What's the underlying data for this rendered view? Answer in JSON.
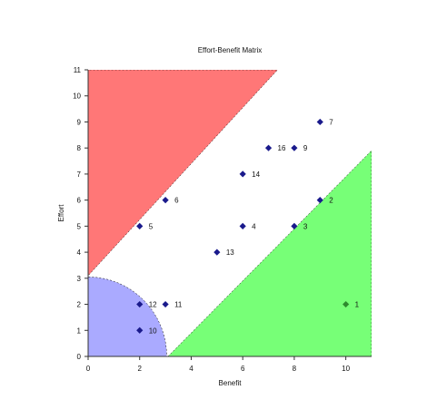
{
  "chart_data": {
    "type": "scatter",
    "title": "Effort-Benefit Matrix",
    "xlabel": "Benefit",
    "ylabel": "Effort",
    "xlim": [
      0,
      11
    ],
    "ylim": [
      0,
      11
    ],
    "x_ticks": [
      "0",
      "2",
      "4",
      "6",
      "8",
      "10"
    ],
    "x_tick_values": [
      0,
      2,
      4,
      6,
      8,
      10
    ],
    "y_ticks": [
      "0",
      "1",
      "2",
      "3",
      "4",
      "5",
      "6",
      "7",
      "8",
      "9",
      "10",
      "11"
    ],
    "y_tick_values": [
      0,
      1,
      2,
      3,
      4,
      5,
      6,
      7,
      8,
      9,
      10,
      11
    ],
    "grid": false,
    "legend": "none",
    "colors": {
      "high_effort_zone": "#ff7777",
      "low_effort_zone": "#aaaaff",
      "high_benefit_zone": "#77ff77",
      "point": "#1a1a8c",
      "highlight_point": "#2e8b2e",
      "axis": "#333333"
    },
    "zones": {
      "high_effort_boundary": [
        [
          0,
          3.1
        ],
        [
          7.35,
          11
        ]
      ],
      "high_benefit_boundary": [
        [
          3.1,
          0
        ],
        [
          11,
          7.9
        ]
      ],
      "low_effort_radius": 3.05
    },
    "points": [
      {
        "label": "7",
        "x": 9,
        "y": 9
      },
      {
        "label": "16",
        "x": 7,
        "y": 8
      },
      {
        "label": "9",
        "x": 8,
        "y": 8
      },
      {
        "label": "14",
        "x": 6,
        "y": 7
      },
      {
        "label": "6",
        "x": 3,
        "y": 6
      },
      {
        "label": "2",
        "x": 9,
        "y": 6
      },
      {
        "label": "5",
        "x": 2,
        "y": 5
      },
      {
        "label": "4",
        "x": 6,
        "y": 5
      },
      {
        "label": "3",
        "x": 8,
        "y": 5
      },
      {
        "label": "13",
        "x": 5,
        "y": 4
      },
      {
        "label": "12",
        "x": 2,
        "y": 2
      },
      {
        "label": "11",
        "x": 3,
        "y": 2
      },
      {
        "label": "1",
        "x": 10,
        "y": 2,
        "highlight": true
      },
      {
        "label": "10",
        "x": 2,
        "y": 1
      }
    ]
  }
}
